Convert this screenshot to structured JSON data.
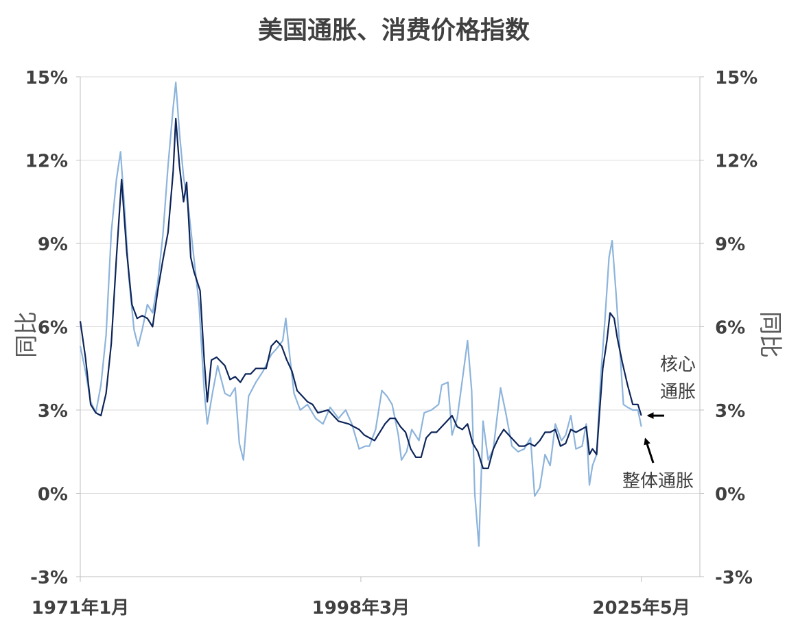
{
  "chart_data": {
    "type": "line",
    "title": "美国通胀、消费价格指数",
    "ylabel_left": "同比",
    "ylabel_right": "同比",
    "y_ticks": [
      "15%",
      "12%",
      "9%",
      "6%",
      "3%",
      "0%",
      "-3%"
    ],
    "y_tick_values": [
      15,
      12,
      9,
      6,
      3,
      0,
      -3
    ],
    "ylim": [
      -3,
      15
    ],
    "xlim": [
      1971.0,
      2031.0
    ],
    "x_ticks": [
      "1971年1月",
      "1998年3月",
      "2025年5月"
    ],
    "x_tick_values": [
      1971.0,
      1998.17,
      2025.33
    ],
    "grid": true,
    "annotations": [
      {
        "text": "核心\n通胀",
        "lines": [
          "核心",
          "通胀"
        ],
        "points_to": "核心通胀",
        "at": [
          2025.33,
          2.8
        ]
      },
      {
        "text": "整体通胀",
        "points_to": "整体通胀",
        "at": [
          2025.33,
          2.35
        ]
      }
    ],
    "series": [
      {
        "name": "整体通胀",
        "color": "#8db4dc",
        "x": [
          1971.0,
          1971.5,
          1972.0,
          1972.5,
          1973.0,
          1973.5,
          1974.0,
          1974.5,
          1974.9,
          1975.3,
          1975.7,
          1976.2,
          1976.6,
          1977.0,
          1977.5,
          1978.0,
          1978.5,
          1979.0,
          1979.5,
          1980.0,
          1980.25,
          1980.6,
          1981.0,
          1981.5,
          1982.0,
          1982.5,
          1983.0,
          1983.3,
          1983.8,
          1984.3,
          1985.0,
          1985.5,
          1986.0,
          1986.4,
          1986.8,
          1987.3,
          1988.0,
          1988.7,
          1989.5,
          1990.0,
          1990.6,
          1990.9,
          1991.3,
          1991.7,
          1992.3,
          1993.0,
          1993.8,
          1994.5,
          1995.2,
          1996.0,
          1996.7,
          1997.3,
          1998.0,
          1998.6,
          1999.0,
          1999.6,
          2000.2,
          2000.7,
          2001.2,
          2001.8,
          2002.1,
          2002.6,
          2003.1,
          2003.8,
          2004.3,
          2005.0,
          2005.7,
          2006.0,
          2006.6,
          2007.0,
          2007.5,
          2008.0,
          2008.5,
          2008.9,
          2009.2,
          2009.6,
          2010.0,
          2010.5,
          2011.0,
          2011.7,
          2012.2,
          2012.8,
          2013.4,
          2014.0,
          2014.6,
          2015.0,
          2015.5,
          2016.0,
          2016.5,
          2017.0,
          2017.6,
          2018.0,
          2018.5,
          2019.0,
          2019.6,
          2020.0,
          2020.3,
          2020.6,
          2021.0,
          2021.4,
          2021.8,
          2022.2,
          2022.5,
          2022.9,
          2023.3,
          2023.6,
          2024.0,
          2024.5,
          2025.0,
          2025.33
        ],
        "values": [
          5.3,
          4.4,
          3.3,
          2.9,
          3.9,
          5.7,
          9.4,
          11.3,
          12.3,
          10.2,
          7.8,
          5.9,
          5.3,
          5.9,
          6.8,
          6.5,
          7.6,
          9.3,
          11.8,
          13.9,
          14.8,
          13.0,
          11.4,
          10.2,
          8.5,
          6.8,
          3.7,
          2.5,
          3.6,
          4.6,
          3.6,
          3.5,
          3.8,
          1.8,
          1.2,
          3.5,
          4.0,
          4.4,
          5.0,
          5.2,
          5.5,
          6.3,
          4.9,
          3.6,
          3.0,
          3.2,
          2.7,
          2.5,
          3.1,
          2.7,
          3.0,
          2.5,
          1.6,
          1.7,
          1.7,
          2.3,
          3.7,
          3.5,
          3.2,
          2.1,
          1.2,
          1.5,
          2.3,
          1.9,
          2.9,
          3.0,
          3.2,
          3.9,
          4.0,
          2.1,
          2.7,
          4.1,
          5.5,
          3.7,
          0.0,
          -1.9,
          2.6,
          1.2,
          1.6,
          3.8,
          2.9,
          1.7,
          1.5,
          1.6,
          2.0,
          -0.1,
          0.2,
          1.4,
          1.0,
          2.5,
          1.9,
          2.1,
          2.8,
          1.6,
          1.7,
          2.5,
          0.3,
          1.0,
          1.4,
          4.2,
          6.2,
          8.5,
          9.1,
          7.1,
          4.9,
          3.2,
          3.1,
          3.0,
          3.0,
          2.4
        ]
      },
      {
        "name": "核心通胀",
        "color": "#0d2559",
        "x": [
          1971.0,
          1971.5,
          1972.0,
          1972.5,
          1973.0,
          1973.5,
          1974.0,
          1974.5,
          1975.0,
          1975.5,
          1976.0,
          1976.5,
          1977.0,
          1977.5,
          1978.0,
          1978.5,
          1979.0,
          1979.5,
          1980.0,
          1980.25,
          1980.6,
          1981.0,
          1981.3,
          1981.7,
          1982.0,
          1982.6,
          1983.0,
          1983.3,
          1983.7,
          1984.2,
          1985.0,
          1985.5,
          1986.0,
          1986.5,
          1987.0,
          1987.5,
          1988.0,
          1988.5,
          1989.0,
          1989.5,
          1990.0,
          1990.5,
          1991.0,
          1991.5,
          1992.0,
          1992.5,
          1993.0,
          1993.5,
          1994.0,
          1995.0,
          1996.0,
          1997.0,
          1998.0,
          1998.5,
          1999.0,
          1999.5,
          2000.0,
          2000.5,
          2001.0,
          2001.5,
          2002.0,
          2002.5,
          2003.0,
          2003.5,
          2004.0,
          2004.5,
          2005.0,
          2005.5,
          2006.0,
          2006.5,
          2007.0,
          2007.5,
          2008.0,
          2008.5,
          2009.0,
          2009.5,
          2010.0,
          2010.5,
          2011.0,
          2011.5,
          2012.0,
          2012.5,
          2013.0,
          2013.5,
          2014.0,
          2014.5,
          2015.0,
          2015.5,
          2016.0,
          2016.5,
          2017.0,
          2017.5,
          2018.0,
          2018.5,
          2019.0,
          2019.5,
          2020.0,
          2020.3,
          2020.6,
          2021.0,
          2021.3,
          2021.6,
          2022.0,
          2022.3,
          2022.7,
          2023.0,
          2023.5,
          2024.0,
          2024.5,
          2025.0,
          2025.33
        ],
        "values": [
          6.2,
          4.9,
          3.2,
          2.9,
          2.8,
          3.6,
          5.4,
          8.5,
          11.3,
          8.7,
          6.8,
          6.3,
          6.4,
          6.3,
          6.0,
          7.3,
          8.4,
          9.4,
          11.6,
          13.5,
          11.8,
          10.5,
          11.2,
          8.5,
          8.0,
          7.3,
          4.8,
          3.3,
          4.8,
          4.9,
          4.6,
          4.1,
          4.2,
          4.0,
          4.3,
          4.3,
          4.5,
          4.5,
          4.5,
          5.3,
          5.5,
          5.3,
          4.8,
          4.4,
          3.7,
          3.5,
          3.3,
          3.2,
          2.9,
          3.0,
          2.6,
          2.5,
          2.3,
          2.1,
          2.0,
          1.9,
          2.2,
          2.5,
          2.7,
          2.7,
          2.4,
          2.2,
          1.6,
          1.3,
          1.3,
          2.0,
          2.2,
          2.2,
          2.4,
          2.6,
          2.8,
          2.4,
          2.3,
          2.5,
          1.8,
          1.5,
          0.9,
          0.9,
          1.6,
          2.0,
          2.3,
          2.1,
          1.9,
          1.7,
          1.7,
          1.8,
          1.7,
          1.9,
          2.2,
          2.2,
          2.3,
          1.7,
          1.8,
          2.3,
          2.2,
          2.3,
          2.4,
          1.4,
          1.6,
          1.4,
          3.0,
          4.5,
          5.5,
          6.5,
          6.3,
          5.6,
          4.7,
          3.9,
          3.2,
          3.2,
          2.8
        ]
      }
    ]
  }
}
